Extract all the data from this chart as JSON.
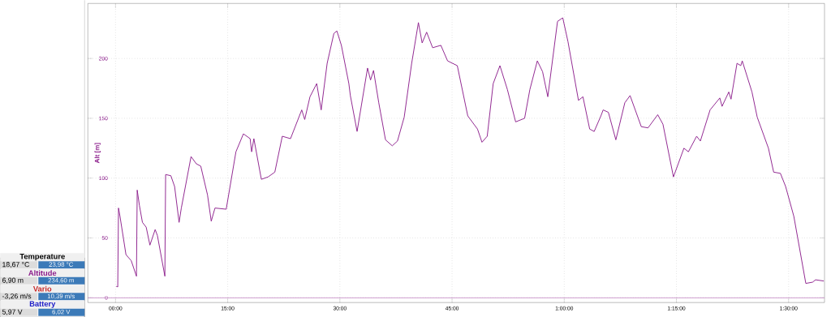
{
  "chart_data": [
    {
      "type": "line",
      "ylabel": "Alt [m]",
      "color": "#8b1c8b",
      "grid": true,
      "x": [
        0.1,
        0.3,
        0.4,
        0.6,
        1.4,
        2.1,
        2.8,
        2.9,
        3.2,
        3.6,
        4.1,
        4.6,
        5.3,
        5.6,
        6.6,
        6.7,
        7.4,
        7.9,
        8.5,
        8.8,
        10.1,
        10.8,
        11.4,
        12.3,
        12.8,
        13.3,
        14.8,
        16.1,
        17.1,
        18.0,
        18.2,
        18.5,
        19.5,
        20.4,
        21.3,
        22.3,
        23.4,
        24.9,
        25.3,
        26.0,
        26.9,
        27.5,
        28.3,
        29.2,
        29.6,
        30.2,
        31.2,
        31.4,
        32.3,
        33.7,
        34.1,
        34.5,
        35.2,
        36.1,
        37.0,
        37.7,
        38.6,
        39.6,
        40.5,
        41.0,
        41.6,
        42.4,
        43.5,
        44.4,
        45.7,
        47.1,
        48.4,
        49.0,
        49.7,
        50.5,
        51.4,
        52.4,
        53.5,
        54.7,
        55.4,
        56.4,
        57.1,
        57.8,
        59.1,
        59.8,
        60.5,
        61.9,
        62.5,
        63.4,
        64.0,
        64.9,
        65.2,
        65.9,
        66.9,
        68.1,
        68.8,
        70.3,
        71.2,
        72.5,
        73.2,
        74.6,
        76.0,
        76.6,
        77.7,
        78.2,
        79.5,
        80.8,
        81.1,
        82.0,
        82.3,
        83.1,
        83.6,
        83.8,
        85.1,
        85.8,
        87.3,
        88.0,
        88.9,
        89.6,
        90.7,
        92.3,
        93.2,
        93.6,
        94.7
      ],
      "values": [
        9.5,
        9,
        75,
        68,
        36,
        31,
        18,
        90,
        77,
        63,
        59,
        44,
        57,
        52,
        18,
        103,
        102,
        93,
        63,
        75,
        118,
        112,
        110,
        86,
        64,
        75,
        74,
        122,
        137,
        133,
        122,
        133,
        99,
        101,
        105,
        135,
        133,
        157,
        149,
        168,
        179,
        157,
        196,
        221,
        223,
        211,
        179,
        169,
        139,
        192,
        182,
        190,
        163,
        132,
        127,
        131,
        151,
        196,
        230,
        213,
        222,
        209,
        211,
        198,
        194,
        152,
        141,
        130,
        135,
        179,
        194,
        174,
        147,
        150,
        174,
        198,
        189,
        168,
        231,
        234,
        214,
        165,
        168,
        141,
        139,
        152,
        157,
        155,
        132,
        163,
        169,
        143,
        142,
        153,
        145,
        101,
        125,
        122,
        135,
        131,
        157,
        167,
        160,
        172,
        166,
        196,
        194,
        198,
        172,
        151,
        125,
        105,
        104,
        93,
        68,
        12,
        13,
        15,
        14
      ],
      "xlim": [
        -3.7,
        94.8
      ],
      "ylim": [
        -4,
        246
      ],
      "xticks": [
        {
          "value": 0,
          "label": "00:00"
        },
        {
          "value": 15,
          "label": "15:00"
        },
        {
          "value": 30,
          "label": "30:00"
        },
        {
          "value": 45,
          "label": "45:00"
        },
        {
          "value": 60,
          "label": "1:00:00"
        },
        {
          "value": 75,
          "label": "1:15:00"
        },
        {
          "value": 90,
          "label": "1:30:00"
        }
      ],
      "yticks": [
        0,
        50,
        100,
        150,
        200
      ],
      "ref_lines": [
        {
          "axis": "y",
          "value": 0,
          "color": "#c890c8"
        }
      ]
    },
    {
      "type": "other",
      "annotations": [
        "Temperature",
        "18,67 °C",
        "23,98 °C",
        "Altitude",
        "6,90 m",
        "234,60 m",
        "Vario",
        "-3,26 m/s",
        "10,39 m/s",
        "Battery",
        "5,97 V",
        "6,02 V"
      ]
    }
  ]
}
